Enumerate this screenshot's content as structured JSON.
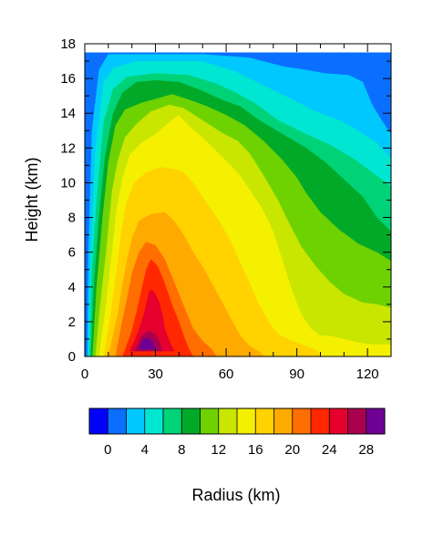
{
  "chart_data": {
    "type": "heatmap",
    "subtype": "filled-contour",
    "xlabel": "Radius (km)",
    "ylabel": "Height (km)",
    "xlim": [
      0,
      130
    ],
    "ylim": [
      0,
      18
    ],
    "x_ticks": [
      "0",
      "30",
      "60",
      "90",
      "120"
    ],
    "y_ticks": [
      "0",
      "2",
      "4",
      "6",
      "8",
      "10",
      "12",
      "14",
      "16",
      "18"
    ],
    "data_top_km": 17.5,
    "colorbar": {
      "orientation": "horizontal",
      "levels": [
        -2,
        0,
        2,
        4,
        6,
        8,
        10,
        12,
        14,
        16,
        18,
        20,
        22,
        24,
        26,
        28,
        30
      ],
      "labels": [
        "0",
        "4",
        "8",
        "12",
        "16",
        "20",
        "24",
        "28"
      ],
      "colors": [
        "#0000ff",
        "#0a6fff",
        "#00c8ff",
        "#00e6d2",
        "#00d278",
        "#00aa28",
        "#6ed200",
        "#c8e600",
        "#f5f000",
        "#ffd200",
        "#ffaa00",
        "#ff6e00",
        "#ff2800",
        "#e6002d",
        "#aa0050",
        "#6e0096"
      ]
    },
    "contour_regions": [
      {
        "level": 0,
        "outline": [
          [
            0,
            0
          ],
          [
            130,
            0
          ],
          [
            130,
            17.5
          ],
          [
            0,
            17.5
          ]
        ]
      },
      {
        "level": 2,
        "outline": [
          [
            1,
            0
          ],
          [
            130,
            0
          ],
          [
            130,
            12.8
          ],
          [
            126,
            13.6
          ],
          [
            122,
            14.5
          ],
          [
            118,
            15.8
          ],
          [
            112,
            16.2
          ],
          [
            102,
            16.3
          ],
          [
            94,
            16.5
          ],
          [
            84,
            16.7
          ],
          [
            70,
            17.2
          ],
          [
            50,
            17.4
          ],
          [
            10,
            17.4
          ],
          [
            6,
            16.5
          ],
          [
            3,
            13
          ],
          [
            1.5,
            6
          ],
          [
            1,
            0
          ]
        ]
      },
      {
        "level": 4,
        "outline": [
          [
            1.5,
            0
          ],
          [
            130,
            0
          ],
          [
            130,
            11.4
          ],
          [
            124,
            12.3
          ],
          [
            116,
            13.0
          ],
          [
            108,
            13.6
          ],
          [
            98,
            14.1
          ],
          [
            88,
            14.8
          ],
          [
            76,
            15.6
          ],
          [
            64,
            16.4
          ],
          [
            50,
            17.0
          ],
          [
            22,
            17.0
          ],
          [
            12,
            16.6
          ],
          [
            8,
            15.8
          ],
          [
            4.5,
            12
          ],
          [
            2.5,
            6
          ],
          [
            1.5,
            0
          ]
        ]
      },
      {
        "level": 6,
        "outline": [
          [
            2,
            0
          ],
          [
            130,
            0
          ],
          [
            130,
            9.8
          ],
          [
            122,
            10.6
          ],
          [
            114,
            11.4
          ],
          [
            104,
            12.2
          ],
          [
            94,
            12.8
          ],
          [
            82,
            13.6
          ],
          [
            72,
            14.6
          ],
          [
            64,
            15.2
          ],
          [
            56,
            15.7
          ],
          [
            44,
            16.2
          ],
          [
            30,
            16.3
          ],
          [
            18,
            16.1
          ],
          [
            12,
            15.4
          ],
          [
            8,
            13.5
          ],
          [
            5,
            9
          ],
          [
            3,
            5
          ],
          [
            2,
            0
          ]
        ]
      },
      {
        "level": 8,
        "outline": [
          [
            2.5,
            0
          ],
          [
            130,
            0
          ],
          [
            130,
            7.2
          ],
          [
            124,
            8.0
          ],
          [
            118,
            9.2
          ],
          [
            110,
            10.2
          ],
          [
            102,
            11.2
          ],
          [
            94,
            12.0
          ],
          [
            84,
            12.8
          ],
          [
            74,
            13.6
          ],
          [
            66,
            14.4
          ],
          [
            58,
            14.8
          ],
          [
            48,
            15.4
          ],
          [
            40,
            15.8
          ],
          [
            30,
            15.9
          ],
          [
            22,
            15.8
          ],
          [
            16,
            15.2
          ],
          [
            12,
            14.0
          ],
          [
            8.5,
            11.5
          ],
          [
            6,
            8
          ],
          [
            3.8,
            4
          ],
          [
            2.5,
            0
          ]
        ]
      },
      {
        "level": 10,
        "outline": [
          [
            3.2,
            0
          ],
          [
            130,
            0
          ],
          [
            130,
            5.5
          ],
          [
            124,
            6.0
          ],
          [
            116,
            6.5
          ],
          [
            108,
            7.3
          ],
          [
            100,
            8.3
          ],
          [
            94,
            9.4
          ],
          [
            90,
            10.3
          ],
          [
            84,
            11.3
          ],
          [
            76,
            12.4
          ],
          [
            68,
            13.3
          ],
          [
            60,
            13.9
          ],
          [
            52,
            14.4
          ],
          [
            44,
            14.8
          ],
          [
            37,
            15.1
          ],
          [
            32,
            14.9
          ],
          [
            24,
            14.6
          ],
          [
            17,
            14.2
          ],
          [
            13,
            13.3
          ],
          [
            10,
            11.2
          ],
          [
            7.5,
            8
          ],
          [
            5,
            4
          ],
          [
            3.2,
            0
          ]
        ]
      },
      {
        "level": 12,
        "outline": [
          [
            4.5,
            0
          ],
          [
            130,
            0
          ],
          [
            130,
            2.8
          ],
          [
            124,
            3.0
          ],
          [
            118,
            3.1
          ],
          [
            110,
            3.6
          ],
          [
            104,
            4.3
          ],
          [
            98,
            5.2
          ],
          [
            92,
            6.3
          ],
          [
            87,
            7.6
          ],
          [
            82,
            9.0
          ],
          [
            76,
            10.4
          ],
          [
            70,
            11.7
          ],
          [
            65,
            12.4
          ],
          [
            58,
            12.9
          ],
          [
            50,
            13.6
          ],
          [
            42,
            14.3
          ],
          [
            36,
            14.5
          ],
          [
            28,
            14.1
          ],
          [
            22,
            13.4
          ],
          [
            17,
            12.6
          ],
          [
            14,
            11.3
          ],
          [
            11.5,
            9.5
          ],
          [
            9,
            6
          ],
          [
            6.5,
            3
          ],
          [
            4.5,
            0
          ]
        ]
      },
      {
        "level": 14,
        "outline": [
          [
            6,
            0
          ],
          [
            130,
            0
          ],
          [
            130,
            0.7
          ],
          [
            122,
            0.7
          ],
          [
            116,
            0.8
          ],
          [
            110,
            1.0
          ],
          [
            104,
            1.2
          ],
          [
            100,
            1.2
          ],
          [
            96,
            1.6
          ],
          [
            92,
            2.4
          ],
          [
            88,
            3.8
          ],
          [
            84,
            5.5
          ],
          [
            80,
            7.2
          ],
          [
            75,
            8.6
          ],
          [
            70,
            9.6
          ],
          [
            66,
            10.4
          ],
          [
            62,
            11.0
          ],
          [
            56,
            11.8
          ],
          [
            50,
            12.6
          ],
          [
            44,
            13.3
          ],
          [
            40,
            13.9
          ],
          [
            36,
            13.5
          ],
          [
            30,
            12.8
          ],
          [
            24,
            12.3
          ],
          [
            19,
            11.6
          ],
          [
            16,
            10.3
          ],
          [
            13.5,
            8.5
          ],
          [
            11.5,
            6
          ],
          [
            9,
            3
          ],
          [
            6,
            0
          ]
        ]
      },
      {
        "level": 16,
        "outline": [
          [
            8,
            0
          ],
          [
            100,
            0
          ],
          [
            98,
            0.4
          ],
          [
            94,
            0.6
          ],
          [
            88,
            0.9
          ],
          [
            82,
            1.3
          ],
          [
            78,
            2.0
          ],
          [
            74,
            3.0
          ],
          [
            70,
            4.2
          ],
          [
            66,
            5.4
          ],
          [
            62,
            6.6
          ],
          [
            58,
            7.6
          ],
          [
            54,
            8.4
          ],
          [
            50,
            9.2
          ],
          [
            46,
            10.0
          ],
          [
            42,
            10.6
          ],
          [
            38,
            10.8
          ],
          [
            32,
            10.9
          ],
          [
            26,
            10.6
          ],
          [
            21,
            10.0
          ],
          [
            17.5,
            8.8
          ],
          [
            15.5,
            7.2
          ],
          [
            13.5,
            5
          ],
          [
            11,
            2.5
          ],
          [
            8,
            0
          ]
        ]
      },
      {
        "level": 18,
        "outline": [
          [
            10,
            0
          ],
          [
            76,
            0
          ],
          [
            74,
            0.3
          ],
          [
            70,
            0.6
          ],
          [
            66,
            1.2
          ],
          [
            62,
            2.2
          ],
          [
            58,
            3.2
          ],
          [
            54,
            4.2
          ],
          [
            50,
            5.2
          ],
          [
            46,
            6.0
          ],
          [
            42,
            7.0
          ],
          [
            38,
            7.8
          ],
          [
            34,
            8.3
          ],
          [
            28,
            8.2
          ],
          [
            23,
            7.8
          ],
          [
            20,
            6.8
          ],
          [
            18,
            5.6
          ],
          [
            16,
            4.2
          ],
          [
            14,
            2.5
          ],
          [
            10,
            0
          ]
        ]
      },
      {
        "level": 20,
        "outline": [
          [
            13,
            0
          ],
          [
            56,
            0
          ],
          [
            54,
            0.4
          ],
          [
            50,
            0.9
          ],
          [
            46,
            1.6
          ],
          [
            43,
            2.6
          ],
          [
            40,
            3.6
          ],
          [
            37,
            4.6
          ],
          [
            34,
            5.6
          ],
          [
            30,
            6.4
          ],
          [
            26,
            6.6
          ],
          [
            23,
            6.0
          ],
          [
            20,
            4.8
          ],
          [
            18,
            3.4
          ],
          [
            15.5,
            1.8
          ],
          [
            13,
            0
          ]
        ]
      },
      {
        "level": 22,
        "outline": [
          [
            16,
            0
          ],
          [
            46,
            0
          ],
          [
            44,
            0.5
          ],
          [
            42,
            1.2
          ],
          [
            40,
            2.0
          ],
          [
            37,
            3.0
          ],
          [
            34,
            4.2
          ],
          [
            31,
            5.2
          ],
          [
            28,
            5.6
          ],
          [
            26,
            5.0
          ],
          [
            24,
            3.8
          ],
          [
            22,
            2.6
          ],
          [
            20,
            1.5
          ],
          [
            16,
            0
          ]
        ]
      },
      {
        "level": 24,
        "outline": [
          [
            19,
            0.3
          ],
          [
            38,
            0.3
          ],
          [
            36,
            0.9
          ],
          [
            34,
            1.6
          ],
          [
            33,
            2.4
          ],
          [
            31.5,
            3.2
          ],
          [
            29,
            3.8
          ],
          [
            27.5,
            3.8
          ],
          [
            26,
            3.0
          ],
          [
            25,
            2.4
          ],
          [
            23,
            1.6
          ],
          [
            21,
            0.9
          ],
          [
            19,
            0.3
          ]
        ]
      },
      {
        "level": 26,
        "outline": [
          [
            21,
            0.3
          ],
          [
            33,
            0.3
          ],
          [
            32,
            0.8
          ],
          [
            30,
            1.3
          ],
          [
            27,
            1.5
          ],
          [
            24,
            1.2
          ],
          [
            22.5,
            0.7
          ],
          [
            21,
            0.3
          ]
        ]
      },
      {
        "level": 28,
        "outline": [
          [
            23,
            0.4
          ],
          [
            30,
            0.4
          ],
          [
            29,
            0.8
          ],
          [
            27,
            1.1
          ],
          [
            25,
            1.0
          ],
          [
            23.5,
            0.7
          ],
          [
            23,
            0.4
          ]
        ]
      }
    ]
  }
}
